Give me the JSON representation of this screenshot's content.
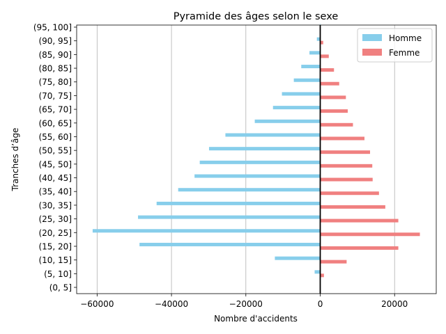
{
  "chart_data": {
    "type": "bar",
    "orientation": "horizontal",
    "title": "Pyramide des âges selon le sexe",
    "xlabel": "Nombre d'accidents",
    "ylabel": "Tranches d’âge",
    "xlim": [
      -65500,
      31200
    ],
    "x_ticks": [
      -60000,
      -40000,
      -20000,
      0,
      20000
    ],
    "x_tick_labels": [
      "−60000",
      "−40000",
      "−20000",
      "0",
      "20000"
    ],
    "grid": "x-axis vertical lines",
    "legend_position": "top-right",
    "categories": [
      "(0, 5]",
      "(5, 10]",
      "(10, 15]",
      "(15, 20]",
      "(20, 25]",
      "(25, 30]",
      "(30, 35]",
      "(35, 40]",
      "(40, 45]",
      "(45, 50]",
      "(50, 55]",
      "(55, 60]",
      "(60, 65]",
      "(65, 70]",
      "(70, 75]",
      "(75, 80]",
      "(80, 85]",
      "(85, 90]",
      "(90, 95]",
      "(95, 100]"
    ],
    "series": [
      {
        "name": "Homme",
        "color": "#87ceeb",
        "values": [
          0,
          -1500,
          -12200,
          -48600,
          -61200,
          -49000,
          -44000,
          -38200,
          -33800,
          -32400,
          -29900,
          -25500,
          -17600,
          -12700,
          -10300,
          -7100,
          -5100,
          -2900,
          -900,
          -100
        ]
      },
      {
        "name": "Femme",
        "color": "#f08080",
        "values": [
          0,
          1000,
          7100,
          21000,
          26800,
          21000,
          17500,
          15800,
          14100,
          14000,
          13400,
          11900,
          8800,
          7400,
          6900,
          5100,
          3700,
          2300,
          800,
          100
        ]
      }
    ]
  }
}
